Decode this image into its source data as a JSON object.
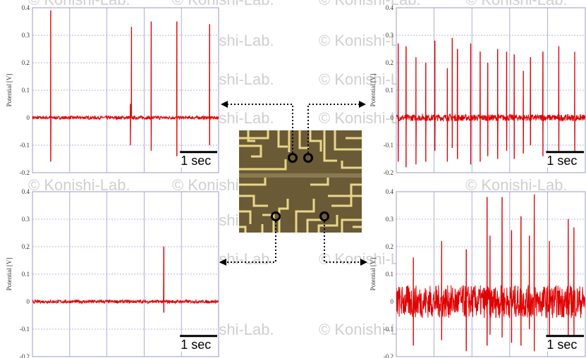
{
  "watermark": "© Konishi-Lab.",
  "scale_bar_label": "1 sec",
  "colors": {
    "signal": "#e00000",
    "grid": "#9a9ad0",
    "axis": "#333333",
    "chip_background": "#6b5a36",
    "chip_trace": "#e8d78a",
    "watermark": "#cfcfcf"
  },
  "chart_data": [
    {
      "type": "line",
      "position": "top-left",
      "ylabel": "Potential [V]",
      "ylim": [
        -0.2,
        0.4
      ],
      "yticks": [
        "0.4",
        "0.3",
        "0.2",
        "0.1",
        "0",
        "-0.1",
        "-0.2"
      ],
      "grid": true,
      "duration_sec": 5,
      "baseline_noise_V": 0.006,
      "spikes": [
        {
          "t": 0.49,
          "peak": 0.39,
          "trough": -0.16
        },
        {
          "t": 2.63,
          "peak": 0.05,
          "trough": -0.1
        },
        {
          "t": 2.66,
          "peak": 0.33,
          "trough": 0
        },
        {
          "t": 3.19,
          "peak": 0.35,
          "trough": -0.12
        },
        {
          "t": 3.88,
          "peak": 0.35,
          "trough": -0.14
        },
        {
          "t": 4.76,
          "peak": 0.34,
          "trough": -0.1
        }
      ]
    },
    {
      "type": "line",
      "position": "top-right",
      "ylabel": "Potential [V]",
      "ylim": [
        -0.2,
        0.4
      ],
      "yticks": [
        "0.4",
        "0.3",
        "0.2",
        "0.1",
        "0",
        "-0.1",
        "-0.2"
      ],
      "grid": true,
      "duration_sec": 5,
      "baseline_noise_V": 0.012,
      "spikes": [
        {
          "t": 0.05,
          "peak": 0.27,
          "trough": -0.16
        },
        {
          "t": 0.26,
          "peak": 0.26,
          "trough": -0.18
        },
        {
          "t": 0.52,
          "peak": 0.22,
          "trough": -0.17
        },
        {
          "t": 0.78,
          "peak": 0.2,
          "trough": -0.16
        },
        {
          "t": 1.02,
          "peak": 0.28,
          "trough": -0.12
        },
        {
          "t": 1.35,
          "peak": 0.18,
          "trough": -0.16
        },
        {
          "t": 1.48,
          "peak": 0.29,
          "trough": -0.11
        },
        {
          "t": 1.62,
          "peak": 0.25,
          "trough": -0.15
        },
        {
          "t": 1.97,
          "peak": 0.27,
          "trough": -0.17
        },
        {
          "t": 2.22,
          "peak": 0.24,
          "trough": -0.16
        },
        {
          "t": 2.42,
          "peak": 0.2,
          "trough": -0.14
        },
        {
          "t": 2.68,
          "peak": 0.25,
          "trough": -0.15
        },
        {
          "t": 2.92,
          "peak": 0.24,
          "trough": -0.12
        },
        {
          "t": 3.12,
          "peak": 0.23,
          "trough": -0.15
        },
        {
          "t": 3.36,
          "peak": 0.17,
          "trough": -0.13
        },
        {
          "t": 3.55,
          "peak": 0.22,
          "trough": -0.1
        },
        {
          "t": 3.88,
          "peak": 0.24,
          "trough": -0.14
        },
        {
          "t": 4.3,
          "peak": 0.26,
          "trough": -0.15
        },
        {
          "t": 4.72,
          "peak": 0.24,
          "trough": -0.17
        }
      ]
    },
    {
      "type": "line",
      "position": "bottom-left",
      "ylabel": "Potential [V]",
      "ylim": [
        -0.2,
        0.4
      ],
      "yticks": [
        "0.4",
        "0.3",
        "0.2",
        "0.1",
        "0",
        "-0.1",
        "-0.2"
      ],
      "grid": true,
      "duration_sec": 5,
      "baseline_noise_V": 0.006,
      "spikes": [
        {
          "t": 3.53,
          "peak": 0.2,
          "trough": -0.04
        }
      ]
    },
    {
      "type": "line",
      "position": "bottom-right",
      "ylabel": "Potential [V]",
      "ylim": [
        -0.2,
        0.4
      ],
      "yticks": [
        "0.4",
        "0.3",
        "0.2",
        "0.1",
        "0",
        "-0.1",
        "-0.2"
      ],
      "grid": true,
      "duration_sec": 5,
      "baseline_noise_V": 0.06,
      "spikes": [
        {
          "t": 0.45,
          "peak": 0.16,
          "trough": -0.16
        },
        {
          "t": 1.2,
          "peak": 0.22,
          "trough": -0.14
        },
        {
          "t": 1.85,
          "peak": 0.19,
          "trough": -0.18
        },
        {
          "t": 2.4,
          "peak": 0.38,
          "trough": -0.16
        },
        {
          "t": 2.48,
          "peak": 0.24,
          "trough": -0.12
        },
        {
          "t": 2.8,
          "peak": 0.38,
          "trough": -0.13
        },
        {
          "t": 3.05,
          "peak": 0.26,
          "trough": -0.15
        },
        {
          "t": 3.3,
          "peak": 0.31,
          "trough": -0.16
        },
        {
          "t": 3.52,
          "peak": 0.24,
          "trough": -0.1
        },
        {
          "t": 3.65,
          "peak": 0.39,
          "trough": -0.18
        },
        {
          "t": 4.05,
          "peak": 0.22,
          "trough": -0.16
        },
        {
          "t": 4.55,
          "peak": 0.3,
          "trough": -0.18
        },
        {
          "t": 4.7,
          "peak": 0.27,
          "trough": -0.14
        }
      ]
    }
  ]
}
